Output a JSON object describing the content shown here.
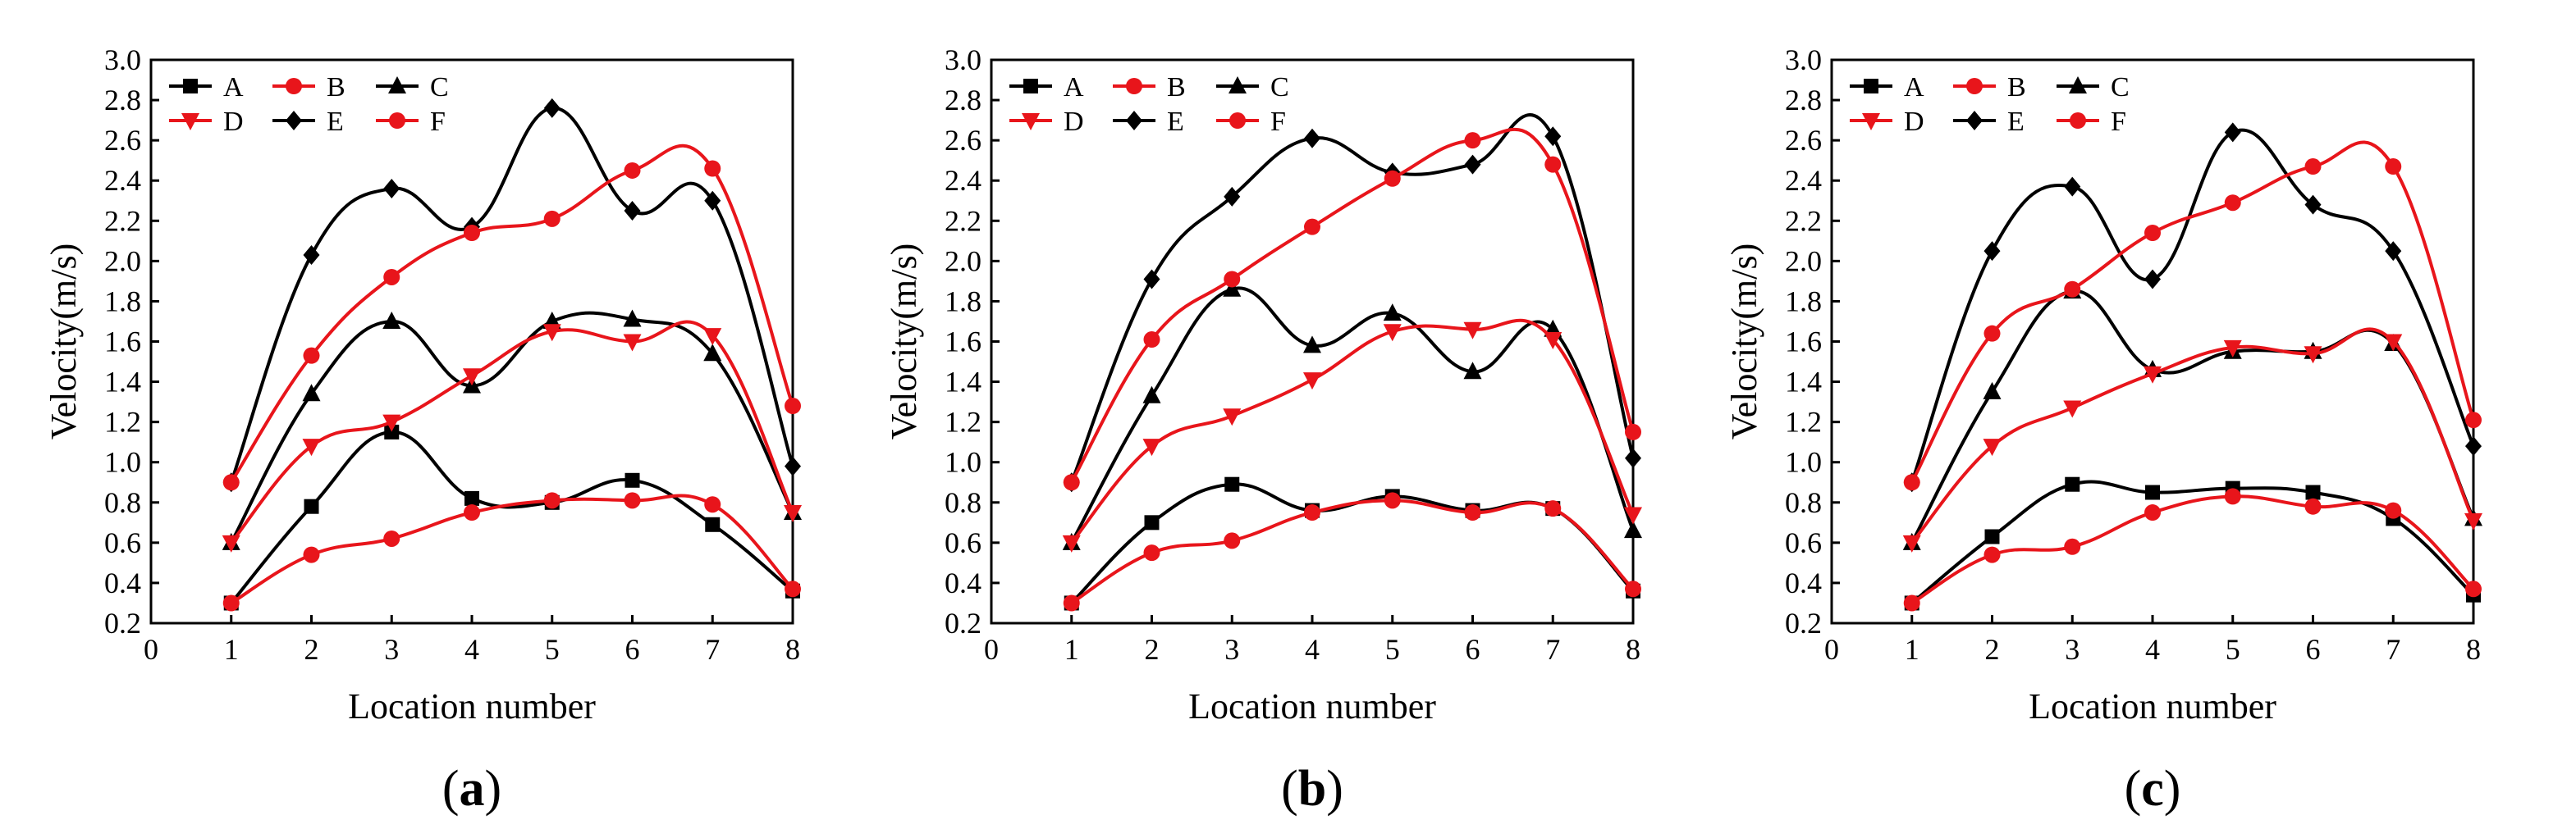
{
  "chart_data": [
    {
      "type": "line",
      "panel_label": "a",
      "xlabel": "Location number",
      "ylabel": "Velocity(m/s)",
      "xlim": [
        0,
        8
      ],
      "ylim": [
        0.2,
        3.0
      ],
      "xticks": [
        0,
        1,
        2,
        3,
        4,
        5,
        6,
        7,
        8
      ],
      "yticks": [
        0.2,
        0.4,
        0.6,
        0.8,
        1.0,
        1.2,
        1.4,
        1.6,
        1.8,
        2.0,
        2.2,
        2.4,
        2.6,
        2.8,
        3.0
      ],
      "legend_position": "top-left",
      "x": [
        1,
        2,
        3,
        4,
        5,
        6,
        7,
        8
      ],
      "series": [
        {
          "name": "A",
          "color": "#000000",
          "marker": "square",
          "values": [
            0.3,
            0.78,
            1.15,
            0.82,
            0.8,
            0.91,
            0.69,
            0.36
          ]
        },
        {
          "name": "B",
          "color": "#e8151b",
          "marker": "circle",
          "values": [
            0.3,
            0.54,
            0.62,
            0.75,
            0.81,
            0.81,
            0.79,
            0.37
          ]
        },
        {
          "name": "C",
          "color": "#000000",
          "marker": "triangle-up",
          "values": [
            0.6,
            1.34,
            1.7,
            1.38,
            1.7,
            1.71,
            1.54,
            0.75
          ]
        },
        {
          "name": "D",
          "color": "#e8151b",
          "marker": "triangle-down",
          "values": [
            0.6,
            1.08,
            1.2,
            1.43,
            1.65,
            1.6,
            1.63,
            0.75
          ]
        },
        {
          "name": "E",
          "color": "#000000",
          "marker": "diamond",
          "values": [
            0.9,
            2.03,
            2.36,
            2.17,
            2.76,
            2.25,
            2.3,
            0.98
          ]
        },
        {
          "name": "F",
          "color": "#e8151b",
          "marker": "circle",
          "values": [
            0.9,
            1.53,
            1.92,
            2.14,
            2.21,
            2.45,
            2.46,
            1.28
          ]
        }
      ]
    },
    {
      "type": "line",
      "panel_label": "b",
      "xlabel": "Location number",
      "ylabel": "Velocity(m/s)",
      "xlim": [
        0,
        8
      ],
      "ylim": [
        0.2,
        3.0
      ],
      "xticks": [
        0,
        1,
        2,
        3,
        4,
        5,
        6,
        7,
        8
      ],
      "yticks": [
        0.2,
        0.4,
        0.6,
        0.8,
        1.0,
        1.2,
        1.4,
        1.6,
        1.8,
        2.0,
        2.2,
        2.4,
        2.6,
        2.8,
        3.0
      ],
      "legend_position": "top-left",
      "x": [
        1,
        2,
        3,
        4,
        5,
        6,
        7,
        8
      ],
      "series": [
        {
          "name": "A",
          "color": "#000000",
          "marker": "square",
          "values": [
            0.3,
            0.7,
            0.89,
            0.76,
            0.83,
            0.76,
            0.77,
            0.36
          ]
        },
        {
          "name": "B",
          "color": "#e8151b",
          "marker": "circle",
          "values": [
            0.3,
            0.55,
            0.61,
            0.75,
            0.81,
            0.75,
            0.77,
            0.37
          ]
        },
        {
          "name": "C",
          "color": "#000000",
          "marker": "triangle-up",
          "values": [
            0.6,
            1.33,
            1.86,
            1.58,
            1.74,
            1.45,
            1.66,
            0.66
          ]
        },
        {
          "name": "D",
          "color": "#e8151b",
          "marker": "triangle-down",
          "values": [
            0.6,
            1.08,
            1.23,
            1.41,
            1.65,
            1.66,
            1.61,
            0.74
          ]
        },
        {
          "name": "E",
          "color": "#000000",
          "marker": "diamond",
          "values": [
            0.9,
            1.91,
            2.32,
            2.61,
            2.44,
            2.48,
            2.62,
            1.02
          ]
        },
        {
          "name": "F",
          "color": "#e8151b",
          "marker": "circle",
          "values": [
            0.9,
            1.61,
            1.91,
            2.17,
            2.41,
            2.6,
            2.48,
            1.15
          ]
        }
      ]
    },
    {
      "type": "line",
      "panel_label": "c",
      "xlabel": "Location number",
      "ylabel": "Velocity(m/s)",
      "xlim": [
        0,
        8
      ],
      "ylim": [
        0.2,
        3.0
      ],
      "xticks": [
        0,
        1,
        2,
        3,
        4,
        5,
        6,
        7,
        8
      ],
      "yticks": [
        0.2,
        0.4,
        0.6,
        0.8,
        1.0,
        1.2,
        1.4,
        1.6,
        1.8,
        2.0,
        2.2,
        2.4,
        2.6,
        2.8,
        3.0
      ],
      "legend_position": "top-left",
      "x": [
        1,
        2,
        3,
        4,
        5,
        6,
        7,
        8
      ],
      "series": [
        {
          "name": "A",
          "color": "#000000",
          "marker": "square",
          "values": [
            0.3,
            0.63,
            0.89,
            0.85,
            0.87,
            0.85,
            0.72,
            0.34
          ]
        },
        {
          "name": "B",
          "color": "#e8151b",
          "marker": "circle",
          "values": [
            0.3,
            0.54,
            0.58,
            0.75,
            0.83,
            0.78,
            0.76,
            0.37
          ]
        },
        {
          "name": "C",
          "color": "#000000",
          "marker": "triangle-up",
          "values": [
            0.6,
            1.35,
            1.85,
            1.46,
            1.55,
            1.55,
            1.59,
            0.72
          ]
        },
        {
          "name": "D",
          "color": "#e8151b",
          "marker": "triangle-down",
          "values": [
            0.6,
            1.08,
            1.27,
            1.44,
            1.57,
            1.54,
            1.6,
            0.71
          ]
        },
        {
          "name": "E",
          "color": "#000000",
          "marker": "diamond",
          "values": [
            0.9,
            2.05,
            2.37,
            1.91,
            2.64,
            2.28,
            2.05,
            1.08
          ]
        },
        {
          "name": "F",
          "color": "#e8151b",
          "marker": "circle",
          "values": [
            0.9,
            1.64,
            1.86,
            2.14,
            2.29,
            2.47,
            2.47,
            1.21
          ]
        }
      ]
    }
  ]
}
